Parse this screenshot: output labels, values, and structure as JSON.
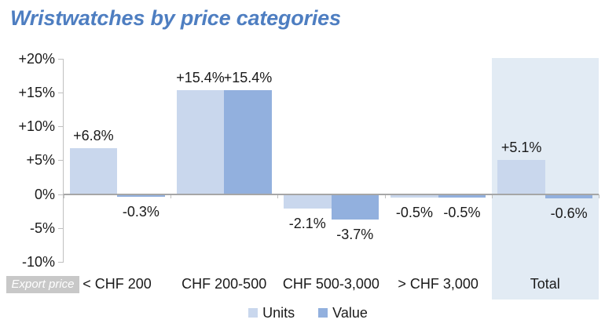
{
  "title": "Wristwatches by price categories",
  "x_axis_note": "Export price",
  "colors": {
    "title": "#4E7EC1",
    "units": "#C9D7ED",
    "value": "#92B0DE",
    "highlight_band": "#E2EBF4",
    "axis": "#BFBFBF",
    "zero_line": "#A6A6A6",
    "text": "#1A1A1A",
    "badge_bg": "#C8C8C8",
    "badge_text": "#FFFFFF"
  },
  "legend": [
    {
      "label": "Units",
      "color": "#C9D7ED"
    },
    {
      "label": "Value",
      "color": "#92B0DE"
    }
  ],
  "chart_data": {
    "type": "bar",
    "title": "Wristwatches by price categories",
    "categories": [
      "< CHF 200",
      "CHF 200-500",
      "CHF 500-3,000",
      "> CHF 3,000",
      "Total"
    ],
    "series": [
      {
        "name": "Units",
        "color": "#C9D7ED",
        "values": [
          6.8,
          15.4,
          -2.1,
          -0.5,
          5.1
        ],
        "labels": [
          "+6.8%",
          "+15.4%",
          "-2.1%",
          "-0.5%",
          "+5.1%"
        ]
      },
      {
        "name": "Value",
        "color": "#92B0DE",
        "values": [
          -0.3,
          15.4,
          -3.7,
          -0.5,
          -0.6
        ],
        "labels": [
          "-0.3%",
          "+15.4%",
          "-3.7%",
          "-0.5%",
          "-0.6%"
        ]
      }
    ],
    "ylim": [
      -10,
      20
    ],
    "yticks": [
      {
        "label": "+20%",
        "value": 20
      },
      {
        "label": "+15%",
        "value": 15
      },
      {
        "label": "+10%",
        "value": 10
      },
      {
        "label": "+5%",
        "value": 5
      },
      {
        "label": "0%",
        "value": 0
      },
      {
        "label": "-5%",
        "value": -5
      },
      {
        "label": "-10%",
        "value": -10
      }
    ],
    "grid": false,
    "legend_position": "bottom",
    "highlighted_category": "Total",
    "x_axis_note": "Export price"
  }
}
